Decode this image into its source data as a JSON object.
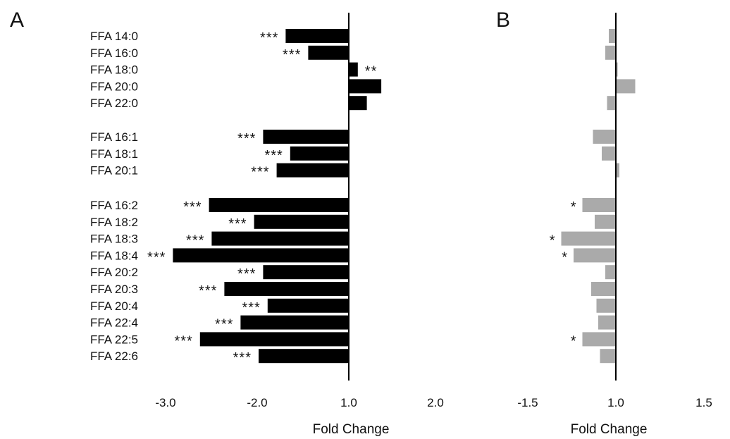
{
  "categories": [
    "FFA 14:0",
    "FFA 16:0",
    "FFA 18:0",
    "FFA 20:0",
    "FFA 22:0",
    "FFA 16:1",
    "FFA 18:1",
    "FFA 20:1",
    "FFA 16:2",
    "FFA 18:2",
    "FFA 18:3",
    "FFA 18:4",
    "FFA 20:2",
    "FFA 20:3",
    "FFA 20:4",
    "FFA 22:4",
    "FFA 22:5",
    "FFA 22:6"
  ],
  "groups": [
    5,
    3,
    10
  ],
  "chart_data": [
    {
      "type": "bar",
      "orientation": "horizontal",
      "panel": "A",
      "xlabel": "Fold Change",
      "ticks": [
        "-3.0",
        "-2.0",
        "1.0",
        "2.0"
      ],
      "tick_values": [
        -3,
        -2,
        1,
        2
      ],
      "baseline": 1.0,
      "xlim": [
        -3.2,
        2.6
      ],
      "bar_color": "#000000",
      "categories": [
        "FFA 14:0",
        "FFA 16:0",
        "FFA 18:0",
        "FFA 20:0",
        "FFA 22:0",
        "FFA 16:1",
        "FFA 18:1",
        "FFA 20:1",
        "FFA 16:2",
        "FFA 18:2",
        "FFA 18:3",
        "FFA 18:4",
        "FFA 20:2",
        "FFA 20:3",
        "FFA 20:4",
        "FFA 22:4",
        "FFA 22:5",
        "FFA 22:6"
      ],
      "values": [
        -1.7,
        -1.45,
        1.1,
        1.36,
        1.2,
        -1.95,
        -1.65,
        -1.8,
        -2.55,
        -2.05,
        -2.52,
        -2.95,
        -1.95,
        -2.38,
        -1.9,
        -2.2,
        -2.65,
        -2.0
      ],
      "significance": [
        "***",
        "***",
        "**",
        "",
        "",
        "***",
        "***",
        "***",
        "***",
        "***",
        "***",
        "***",
        "***",
        "***",
        "***",
        "***",
        "***",
        "***"
      ]
    },
    {
      "type": "bar",
      "orientation": "horizontal",
      "panel": "B",
      "xlabel": "Fold Change",
      "ticks": [
        "-1.5",
        "1.0",
        "1.5"
      ],
      "tick_values": [
        -1.5,
        1,
        1.5
      ],
      "baseline": 1.0,
      "xlim": [
        -1.65,
        1.6
      ],
      "bar_color": "#aaaaaa",
      "categories": [
        "FFA 14:0",
        "FFA 16:0",
        "FFA 18:0",
        "FFA 20:0",
        "FFA 22:0",
        "FFA 16:1",
        "FFA 18:1",
        "FFA 20:1",
        "FFA 16:2",
        "FFA 18:2",
        "FFA 18:3",
        "FFA 18:4",
        "FFA 20:2",
        "FFA 20:3",
        "FFA 20:4",
        "FFA 22:4",
        "FFA 22:5",
        "FFA 22:6"
      ],
      "values": [
        -1.04,
        -1.06,
        1.01,
        1.11,
        -1.05,
        -1.13,
        -1.08,
        1.02,
        -1.19,
        -1.12,
        -1.31,
        -1.24,
        -1.06,
        -1.14,
        -1.11,
        -1.1,
        -1.19,
        -1.09
      ],
      "significance": [
        "",
        "",
        "",
        "",
        "",
        "",
        "",
        "",
        "*",
        "",
        "*",
        "*",
        "",
        "",
        "",
        "",
        "*",
        ""
      ]
    }
  ]
}
